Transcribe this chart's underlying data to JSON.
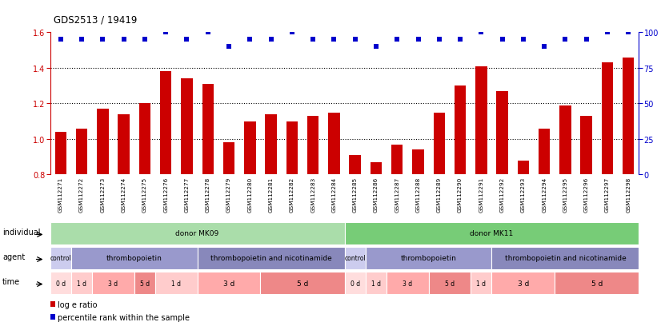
{
  "title": "GDS2513 / 19419",
  "samples": [
    "GSM112271",
    "GSM112272",
    "GSM112273",
    "GSM112274",
    "GSM112275",
    "GSM112276",
    "GSM112277",
    "GSM112278",
    "GSM112279",
    "GSM112280",
    "GSM112281",
    "GSM112282",
    "GSM112283",
    "GSM112284",
    "GSM112285",
    "GSM112286",
    "GSM112287",
    "GSM112288",
    "GSM112289",
    "GSM112290",
    "GSM112291",
    "GSM112292",
    "GSM112293",
    "GSM112294",
    "GSM112295",
    "GSM112296",
    "GSM112297",
    "GSM112298"
  ],
  "log_e_ratio": [
    1.04,
    1.06,
    1.17,
    1.14,
    1.2,
    1.38,
    1.34,
    1.31,
    0.98,
    1.1,
    1.14,
    1.1,
    1.13,
    1.15,
    0.91,
    0.87,
    0.97,
    0.94,
    1.15,
    1.3,
    1.41,
    1.27,
    0.88,
    1.06,
    1.19,
    1.13,
    1.43,
    1.46
  ],
  "percentile_rank": [
    95,
    95,
    95,
    95,
    95,
    100,
    95,
    100,
    90,
    95,
    95,
    100,
    95,
    95,
    95,
    90,
    95,
    95,
    95,
    95,
    100,
    95,
    95,
    90,
    95,
    95,
    100,
    100
  ],
  "bar_color": "#cc0000",
  "dot_color": "#0000cc",
  "ylim_left": [
    0.8,
    1.6
  ],
  "ylim_right": [
    0,
    100
  ],
  "yticks_left": [
    0.8,
    1.0,
    1.2,
    1.4,
    1.6
  ],
  "yticks_right": [
    0,
    25,
    50,
    75,
    100
  ],
  "dotted_lines": [
    1.0,
    1.2,
    1.4
  ],
  "individual_row": [
    {
      "label": "donor MK09",
      "start": 0,
      "end": 14,
      "color": "#aaddaa"
    },
    {
      "label": "donor MK11",
      "start": 14,
      "end": 28,
      "color": "#77cc77"
    }
  ],
  "agent_row": [
    {
      "label": "control",
      "start": 0,
      "end": 1,
      "color": "#ccccee"
    },
    {
      "label": "thrombopoietin",
      "start": 1,
      "end": 7,
      "color": "#9999cc"
    },
    {
      "label": "thrombopoietin and nicotinamide",
      "start": 7,
      "end": 14,
      "color": "#8888bb"
    },
    {
      "label": "control",
      "start": 14,
      "end": 15,
      "color": "#ccccee"
    },
    {
      "label": "thrombopoietin",
      "start": 15,
      "end": 21,
      "color": "#9999cc"
    },
    {
      "label": "thrombopoietin and nicotinamide",
      "start": 21,
      "end": 28,
      "color": "#8888bb"
    }
  ],
  "time_row": [
    {
      "label": "0 d",
      "start": 0,
      "end": 1,
      "color": "#ffdddd"
    },
    {
      "label": "1 d",
      "start": 1,
      "end": 2,
      "color": "#ffcccc"
    },
    {
      "label": "3 d",
      "start": 2,
      "end": 4,
      "color": "#ffaaaa"
    },
    {
      "label": "5 d",
      "start": 4,
      "end": 5,
      "color": "#ee8888"
    },
    {
      "label": "1 d",
      "start": 5,
      "end": 7,
      "color": "#ffcccc"
    },
    {
      "label": "3 d",
      "start": 7,
      "end": 10,
      "color": "#ffaaaa"
    },
    {
      "label": "5 d",
      "start": 10,
      "end": 14,
      "color": "#ee8888"
    },
    {
      "label": "0 d",
      "start": 14,
      "end": 15,
      "color": "#ffdddd"
    },
    {
      "label": "1 d",
      "start": 15,
      "end": 16,
      "color": "#ffcccc"
    },
    {
      "label": "3 d",
      "start": 16,
      "end": 18,
      "color": "#ffaaaa"
    },
    {
      "label": "5 d",
      "start": 18,
      "end": 20,
      "color": "#ee8888"
    },
    {
      "label": "1 d",
      "start": 20,
      "end": 21,
      "color": "#ffcccc"
    },
    {
      "label": "3 d",
      "start": 21,
      "end": 24,
      "color": "#ffaaaa"
    },
    {
      "label": "5 d",
      "start": 24,
      "end": 28,
      "color": "#ee8888"
    }
  ],
  "row_labels": [
    "individual",
    "agent",
    "time"
  ],
  "legend_items": [
    {
      "label": "log e ratio",
      "color": "#cc0000"
    },
    {
      "label": "percentile rank within the sample",
      "color": "#0000cc"
    }
  ]
}
